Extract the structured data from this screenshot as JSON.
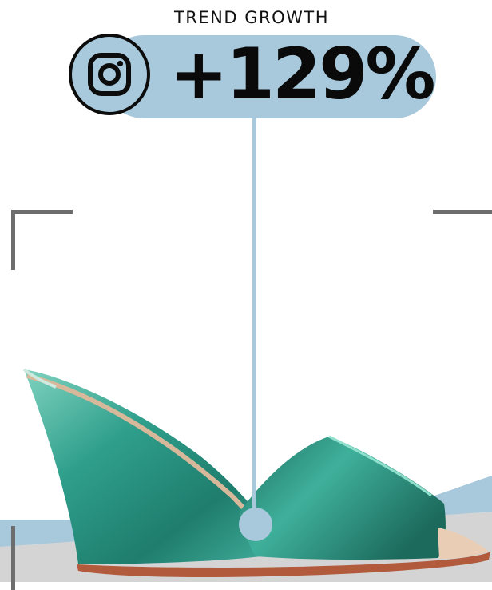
{
  "header": {
    "label": "TREND GROWTH",
    "growth_value": "+129%",
    "platform_icon": "instagram-icon"
  },
  "colors": {
    "accent": "#a8c8dc",
    "shoe": "#2f9f8c",
    "frame": "#6d6d6d",
    "text": "#0a0a0a"
  },
  "product": {
    "image": "teal-metallic-wedge-mule-shoe"
  }
}
